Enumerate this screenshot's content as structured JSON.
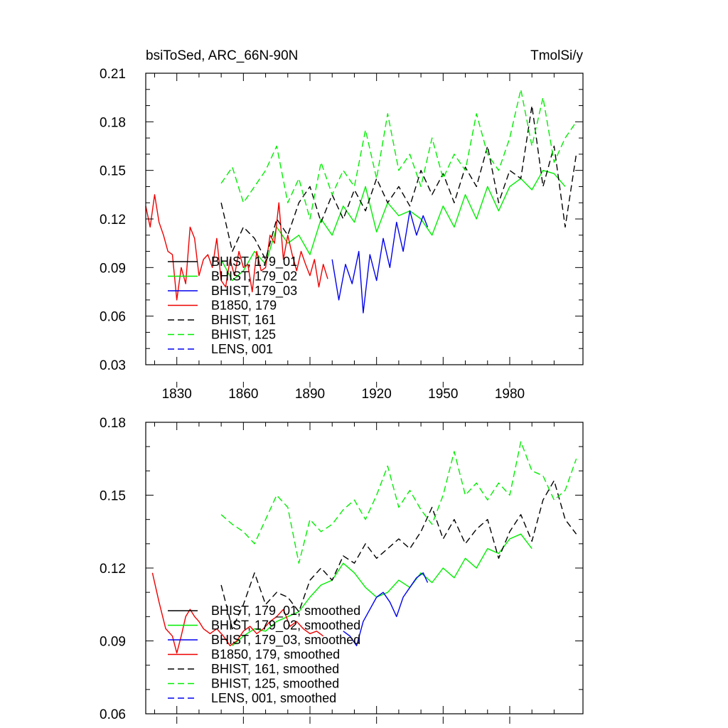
{
  "chart_data": [
    {
      "type": "line",
      "title_left": "bsiToSed, ARC_66N-90N",
      "title_right": "TmolSi/y",
      "xlim": [
        1816,
        2013
      ],
      "ylim": [
        0.03,
        0.21
      ],
      "xticks": [
        1830,
        1860,
        1890,
        1920,
        1950,
        1980
      ],
      "xtick_labels": [
        "1830",
        "1860",
        "1890",
        "1920",
        "1950",
        "1980"
      ],
      "yticks": [
        0.03,
        0.06,
        0.09,
        0.12,
        0.15,
        0.18,
        0.21
      ],
      "ytick_labels": [
        "0.03",
        "0.06",
        "0.09",
        "0.12",
        "0.15",
        "0.18",
        "0.21"
      ],
      "legend_position": "bottom-left",
      "series": [
        {
          "name": "BHIST, 179_01",
          "color": "#000000",
          "dash": "solid",
          "x": [],
          "values": []
        },
        {
          "name": "BHIST, 179_02",
          "color": "#00ee00",
          "dash": "solid",
          "x": [
            1850,
            1855,
            1860,
            1865,
            1870,
            1875,
            1880,
            1885,
            1890,
            1895,
            1900,
            1905,
            1910,
            1915,
            1920,
            1925,
            1930,
            1935,
            1940,
            1945,
            1950,
            1955,
            1960,
            1965,
            1970,
            1975,
            1980,
            1985,
            1990,
            1995,
            2000,
            2005
          ],
          "values": [
            0.095,
            0.082,
            0.088,
            0.1,
            0.092,
            0.115,
            0.105,
            0.11,
            0.098,
            0.12,
            0.11,
            0.128,
            0.118,
            0.14,
            0.112,
            0.13,
            0.122,
            0.125,
            0.12,
            0.11,
            0.128,
            0.115,
            0.135,
            0.12,
            0.14,
            0.125,
            0.14,
            0.145,
            0.138,
            0.15,
            0.148,
            0.14
          ]
        },
        {
          "name": "BHIST, 179_03",
          "color": "#0000ee",
          "dash": "solid",
          "x": [
            1900,
            1903,
            1906,
            1909,
            1912,
            1914,
            1917,
            1920,
            1923,
            1926,
            1929,
            1932,
            1935,
            1938,
            1941,
            1943
          ],
          "values": [
            0.095,
            0.07,
            0.092,
            0.08,
            0.1,
            0.062,
            0.098,
            0.082,
            0.108,
            0.09,
            0.118,
            0.1,
            0.125,
            0.11,
            0.122,
            0.115
          ]
        },
        {
          "name": "B1850, 179",
          "color": "#ee0000",
          "dash": "solid",
          "x": [
            1816,
            1818,
            1820,
            1822,
            1824,
            1826,
            1828,
            1830,
            1832,
            1834,
            1836,
            1838,
            1840,
            1842,
            1844,
            1846,
            1848,
            1850,
            1852,
            1854,
            1856,
            1858,
            1860,
            1862,
            1864,
            1866,
            1868,
            1870,
            1872,
            1874,
            1876,
            1878,
            1880,
            1882,
            1884,
            1886,
            1888,
            1890,
            1892,
            1894,
            1896,
            1898
          ],
          "values": [
            0.128,
            0.115,
            0.135,
            0.118,
            0.11,
            0.1,
            0.098,
            0.07,
            0.09,
            0.08,
            0.115,
            0.108,
            0.085,
            0.095,
            0.098,
            0.09,
            0.108,
            0.082,
            0.078,
            0.095,
            0.085,
            0.1,
            0.09,
            0.092,
            0.075,
            0.1,
            0.088,
            0.09,
            0.11,
            0.105,
            0.13,
            0.095,
            0.11,
            0.098,
            0.088,
            0.1,
            0.092,
            0.085,
            0.095,
            0.078,
            0.092,
            0.083
          ]
        },
        {
          "name": "BHIST, 161",
          "color": "#000000",
          "dash": "dashed",
          "x": [
            1850,
            1855,
            1860,
            1865,
            1870,
            1875,
            1880,
            1885,
            1890,
            1895,
            1900,
            1905,
            1910,
            1915,
            1920,
            1925,
            1930,
            1935,
            1940,
            1945,
            1950,
            1955,
            1960,
            1965,
            1970,
            1975,
            1980,
            1985,
            1990,
            1995,
            2000,
            2005,
            2010
          ],
          "values": [
            0.13,
            0.1,
            0.115,
            0.108,
            0.095,
            0.12,
            0.11,
            0.13,
            0.14,
            0.118,
            0.135,
            0.12,
            0.138,
            0.125,
            0.145,
            0.13,
            0.14,
            0.128,
            0.15,
            0.135,
            0.148,
            0.13,
            0.152,
            0.14,
            0.165,
            0.13,
            0.15,
            0.145,
            0.19,
            0.14,
            0.165,
            0.115,
            0.16
          ]
        },
        {
          "name": "BHIST, 125",
          "color": "#00ee00",
          "dash": "dashed",
          "x": [
            1850,
            1855,
            1860,
            1865,
            1870,
            1875,
            1880,
            1885,
            1890,
            1895,
            1900,
            1905,
            1910,
            1915,
            1920,
            1925,
            1930,
            1935,
            1940,
            1945,
            1950,
            1955,
            1960,
            1965,
            1970,
            1975,
            1980,
            1985,
            1990,
            1995,
            2000,
            2005,
            2010
          ],
          "values": [
            0.142,
            0.152,
            0.13,
            0.14,
            0.15,
            0.165,
            0.13,
            0.145,
            0.12,
            0.155,
            0.135,
            0.15,
            0.14,
            0.175,
            0.145,
            0.185,
            0.15,
            0.16,
            0.14,
            0.17,
            0.145,
            0.16,
            0.15,
            0.185,
            0.16,
            0.15,
            0.17,
            0.2,
            0.165,
            0.195,
            0.155,
            0.17,
            0.18
          ]
        },
        {
          "name": "LENS, 001",
          "color": "#0000ee",
          "dash": "dashed",
          "x": [],
          "values": []
        }
      ]
    },
    {
      "type": "line",
      "xlim": [
        1816,
        2013
      ],
      "ylim": [
        0.06,
        0.18
      ],
      "xticks": [
        1830,
        1860,
        1890,
        1920,
        1950,
        1980
      ],
      "yticks": [
        0.06,
        0.09,
        0.12,
        0.15,
        0.18
      ],
      "ytick_labels": [
        "0.06",
        "0.09",
        "0.12",
        "0.15",
        "0.18"
      ],
      "legend_position": "bottom-left",
      "series": [
        {
          "name": "BHIST, 179_01, smoothed",
          "color": "#000000",
          "dash": "solid",
          "x": [],
          "values": []
        },
        {
          "name": "BHIST, 179_02, smoothed",
          "color": "#00ee00",
          "dash": "solid",
          "x": [
            1855,
            1860,
            1865,
            1870,
            1875,
            1880,
            1885,
            1890,
            1895,
            1900,
            1905,
            1910,
            1915,
            1920,
            1925,
            1930,
            1935,
            1940,
            1945,
            1950,
            1955,
            1960,
            1965,
            1970,
            1975,
            1980,
            1985,
            1990
          ],
          "values": [
            0.088,
            0.092,
            0.095,
            0.094,
            0.098,
            0.1,
            0.102,
            0.108,
            0.113,
            0.115,
            0.122,
            0.118,
            0.112,
            0.108,
            0.11,
            0.115,
            0.112,
            0.118,
            0.114,
            0.12,
            0.116,
            0.124,
            0.12,
            0.128,
            0.126,
            0.132,
            0.134,
            0.128
          ]
        },
        {
          "name": "BHIST, 179_03, smoothed",
          "color": "#0000ee",
          "dash": "solid",
          "x": [
            1905,
            1908,
            1911,
            1914,
            1917,
            1920,
            1923,
            1926,
            1929,
            1932,
            1935,
            1938,
            1941,
            1943
          ],
          "values": [
            0.094,
            0.092,
            0.088,
            0.098,
            0.103,
            0.108,
            0.11,
            0.106,
            0.1,
            0.108,
            0.112,
            0.116,
            0.118,
            0.114
          ]
        },
        {
          "name": "B1850, 179, smoothed",
          "color": "#ee0000",
          "dash": "solid",
          "x": [
            1819,
            1822,
            1825,
            1828,
            1830,
            1832,
            1834,
            1836,
            1838,
            1840,
            1842,
            1845,
            1848,
            1851,
            1854,
            1857,
            1860,
            1863,
            1866,
            1869,
            1872,
            1875,
            1878,
            1881,
            1884,
            1887,
            1890,
            1893,
            1896
          ],
          "values": [
            0.118,
            0.106,
            0.095,
            0.092,
            0.085,
            0.092,
            0.1,
            0.103,
            0.1,
            0.098,
            0.095,
            0.093,
            0.095,
            0.092,
            0.088,
            0.09,
            0.094,
            0.096,
            0.093,
            0.095,
            0.098,
            0.1,
            0.103,
            0.096,
            0.098,
            0.095,
            0.093,
            0.094,
            0.092
          ]
        },
        {
          "name": "BHIST, 161, smoothed",
          "color": "#000000",
          "dash": "dashed",
          "x": [
            1850,
            1855,
            1860,
            1865,
            1870,
            1875,
            1880,
            1885,
            1890,
            1895,
            1900,
            1905,
            1910,
            1915,
            1920,
            1925,
            1930,
            1935,
            1940,
            1945,
            1950,
            1955,
            1960,
            1965,
            1970,
            1975,
            1980,
            1985,
            1990,
            1995,
            2000,
            2005,
            2010
          ],
          "values": [
            0.113,
            0.095,
            0.105,
            0.118,
            0.105,
            0.11,
            0.108,
            0.102,
            0.115,
            0.12,
            0.115,
            0.125,
            0.122,
            0.13,
            0.124,
            0.128,
            0.132,
            0.128,
            0.135,
            0.145,
            0.132,
            0.14,
            0.13,
            0.136,
            0.14,
            0.124,
            0.135,
            0.142,
            0.131,
            0.148,
            0.156,
            0.14,
            0.134
          ]
        },
        {
          "name": "BHIST, 125, smoothed",
          "color": "#00ee00",
          "dash": "dashed",
          "x": [
            1850,
            1855,
            1860,
            1865,
            1870,
            1875,
            1880,
            1885,
            1890,
            1895,
            1900,
            1905,
            1910,
            1915,
            1920,
            1925,
            1930,
            1935,
            1940,
            1945,
            1950,
            1955,
            1960,
            1965,
            1970,
            1975,
            1980,
            1985,
            1990,
            1995,
            2000,
            2005,
            2010
          ],
          "values": [
            0.142,
            0.138,
            0.135,
            0.13,
            0.14,
            0.15,
            0.145,
            0.122,
            0.14,
            0.135,
            0.138,
            0.144,
            0.148,
            0.14,
            0.15,
            0.162,
            0.145,
            0.152,
            0.144,
            0.138,
            0.15,
            0.168,
            0.15,
            0.155,
            0.148,
            0.155,
            0.15,
            0.172,
            0.16,
            0.158,
            0.148,
            0.152,
            0.165
          ]
        },
        {
          "name": "LENS, 001, smoothed",
          "color": "#0000ee",
          "dash": "dashed",
          "x": [],
          "values": []
        }
      ]
    }
  ]
}
